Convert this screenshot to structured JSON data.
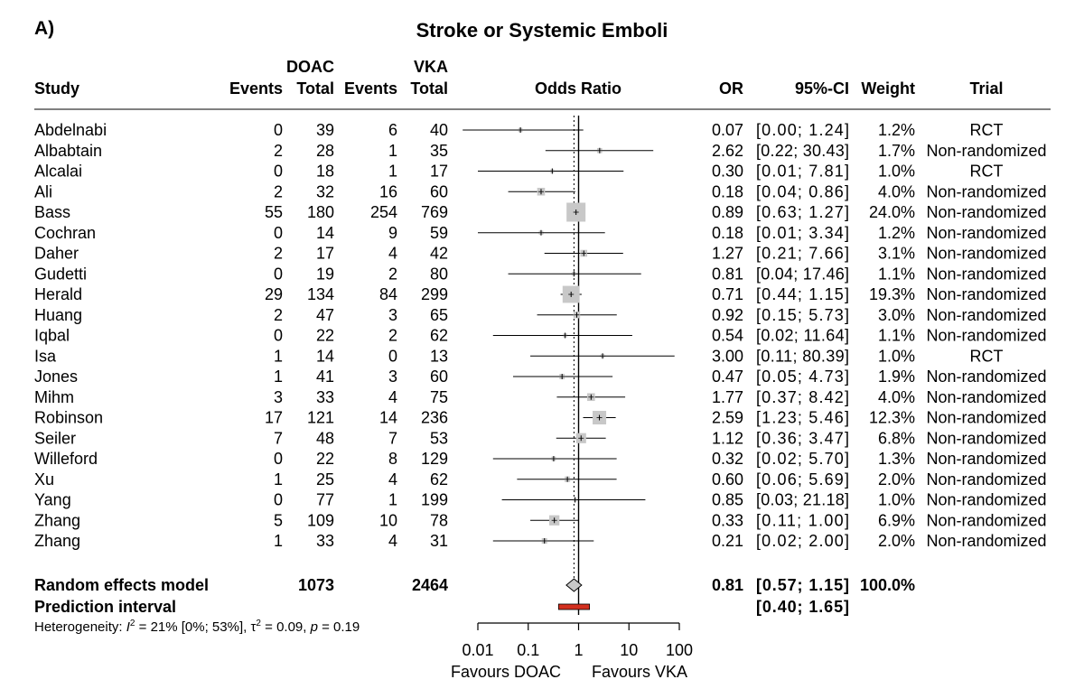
{
  "panel_label": "A)",
  "chart_data": {
    "type": "forest",
    "title": "Stroke or Systemic Emboli",
    "header": {
      "group1": "DOAC",
      "group2": "VKA",
      "study": "Study",
      "events": "Events",
      "total": "Total",
      "effect": "Odds Ratio",
      "or": "OR",
      "ci": "95%-CI",
      "weight": "Weight",
      "trial": "Trial"
    },
    "studies": [
      {
        "study": "Abdelnabi",
        "e1": "0",
        "n1": "39",
        "e2": "6",
        "n2": "40",
        "or": 0.07,
        "lo": 0.0,
        "hi": 1.24,
        "ci": "[0.00;  1.24]",
        "weight_pct": 1.2,
        "weight": "1.2%",
        "trial": "RCT"
      },
      {
        "study": "Albabtain",
        "e1": "2",
        "n1": "28",
        "e2": "1",
        "n2": "35",
        "or": 2.62,
        "lo": 0.22,
        "hi": 30.43,
        "ci": "[0.22; 30.43]",
        "weight_pct": 1.7,
        "weight": "1.7%",
        "trial": "Non-randomized"
      },
      {
        "study": "Alcalai",
        "e1": "0",
        "n1": "18",
        "e2": "1",
        "n2": "17",
        "or": 0.3,
        "lo": 0.01,
        "hi": 7.81,
        "ci": "[0.01;  7.81]",
        "weight_pct": 1.0,
        "weight": "1.0%",
        "trial": "RCT"
      },
      {
        "study": "Ali",
        "e1": "2",
        "n1": "32",
        "e2": "16",
        "n2": "60",
        "or": 0.18,
        "lo": 0.04,
        "hi": 0.86,
        "ci": "[0.04;  0.86]",
        "weight_pct": 4.0,
        "weight": "4.0%",
        "trial": "Non-randomized"
      },
      {
        "study": "Bass",
        "e1": "55",
        "n1": "180",
        "e2": "254",
        "n2": "769",
        "or": 0.89,
        "lo": 0.63,
        "hi": 1.27,
        "ci": "[0.63;  1.27]",
        "weight_pct": 24.0,
        "weight": "24.0%",
        "trial": "Non-randomized"
      },
      {
        "study": "Cochran",
        "e1": "0",
        "n1": "14",
        "e2": "9",
        "n2": "59",
        "or": 0.18,
        "lo": 0.01,
        "hi": 3.34,
        "ci": "[0.01;  3.34]",
        "weight_pct": 1.2,
        "weight": "1.2%",
        "trial": "Non-randomized"
      },
      {
        "study": "Daher",
        "e1": "2",
        "n1": "17",
        "e2": "4",
        "n2": "42",
        "or": 1.27,
        "lo": 0.21,
        "hi": 7.66,
        "ci": "[0.21;  7.66]",
        "weight_pct": 3.1,
        "weight": "3.1%",
        "trial": "Non-randomized"
      },
      {
        "study": "Gudetti",
        "e1": "0",
        "n1": "19",
        "e2": "2",
        "n2": "80",
        "or": 0.81,
        "lo": 0.04,
        "hi": 17.46,
        "ci": "[0.04; 17.46]",
        "weight_pct": 1.1,
        "weight": "1.1%",
        "trial": "Non-randomized"
      },
      {
        "study": "Herald",
        "e1": "29",
        "n1": "134",
        "e2": "84",
        "n2": "299",
        "or": 0.71,
        "lo": 0.44,
        "hi": 1.15,
        "ci": "[0.44;  1.15]",
        "weight_pct": 19.3,
        "weight": "19.3%",
        "trial": "Non-randomized"
      },
      {
        "study": "Huang",
        "e1": "2",
        "n1": "47",
        "e2": "3",
        "n2": "65",
        "or": 0.92,
        "lo": 0.15,
        "hi": 5.73,
        "ci": "[0.15;  5.73]",
        "weight_pct": 3.0,
        "weight": "3.0%",
        "trial": "Non-randomized"
      },
      {
        "study": "Iqbal",
        "e1": "0",
        "n1": "22",
        "e2": "2",
        "n2": "62",
        "or": 0.54,
        "lo": 0.02,
        "hi": 11.64,
        "ci": "[0.02; 11.64]",
        "weight_pct": 1.1,
        "weight": "1.1%",
        "trial": "Non-randomized"
      },
      {
        "study": "Isa",
        "e1": "1",
        "n1": "14",
        "e2": "0",
        "n2": "13",
        "or": 3.0,
        "lo": 0.11,
        "hi": 80.39,
        "ci": "[0.11; 80.39]",
        "weight_pct": 1.0,
        "weight": "1.0%",
        "trial": "RCT"
      },
      {
        "study": "Jones",
        "e1": "1",
        "n1": "41",
        "e2": "3",
        "n2": "60",
        "or": 0.47,
        "lo": 0.05,
        "hi": 4.73,
        "ci": "[0.05;  4.73]",
        "weight_pct": 1.9,
        "weight": "1.9%",
        "trial": "Non-randomized"
      },
      {
        "study": "Mihm",
        "e1": "3",
        "n1": "33",
        "e2": "4",
        "n2": "75",
        "or": 1.77,
        "lo": 0.37,
        "hi": 8.42,
        "ci": "[0.37;  8.42]",
        "weight_pct": 4.0,
        "weight": "4.0%",
        "trial": "Non-randomized"
      },
      {
        "study": "Robinson",
        "e1": "17",
        "n1": "121",
        "e2": "14",
        "n2": "236",
        "or": 2.59,
        "lo": 1.23,
        "hi": 5.46,
        "ci": "[1.23;  5.46]",
        "weight_pct": 12.3,
        "weight": "12.3%",
        "trial": "Non-randomized"
      },
      {
        "study": "Seiler",
        "e1": "7",
        "n1": "48",
        "e2": "7",
        "n2": "53",
        "or": 1.12,
        "lo": 0.36,
        "hi": 3.47,
        "ci": "[0.36;  3.47]",
        "weight_pct": 6.8,
        "weight": "6.8%",
        "trial": "Non-randomized"
      },
      {
        "study": "Willeford",
        "e1": "0",
        "n1": "22",
        "e2": "8",
        "n2": "129",
        "or": 0.32,
        "lo": 0.02,
        "hi": 5.7,
        "ci": "[0.02;  5.70]",
        "weight_pct": 1.3,
        "weight": "1.3%",
        "trial": "Non-randomized"
      },
      {
        "study": "Xu",
        "e1": "1",
        "n1": "25",
        "e2": "4",
        "n2": "62",
        "or": 0.6,
        "lo": 0.06,
        "hi": 5.69,
        "ci": "[0.06;  5.69]",
        "weight_pct": 2.0,
        "weight": "2.0%",
        "trial": "Non-randomized"
      },
      {
        "study": "Yang",
        "e1": "0",
        "n1": "77",
        "e2": "1",
        "n2": "199",
        "or": 0.85,
        "lo": 0.03,
        "hi": 21.18,
        "ci": "[0.03; 21.18]",
        "weight_pct": 1.0,
        "weight": "1.0%",
        "trial": "Non-randomized"
      },
      {
        "study": "Zhang",
        "e1": "5",
        "n1": "109",
        "e2": "10",
        "n2": "78",
        "or": 0.33,
        "lo": 0.11,
        "hi": 1.0,
        "ci": "[0.11;  1.00]",
        "weight_pct": 6.9,
        "weight": "6.9%",
        "trial": "Non-randomized"
      },
      {
        "study": "Zhang",
        "e1": "1",
        "n1": "33",
        "e2": "4",
        "n2": "31",
        "or": 0.21,
        "lo": 0.02,
        "hi": 2.0,
        "ci": "[0.02;  2.00]",
        "weight_pct": 2.0,
        "weight": "2.0%",
        "trial": "Non-randomized"
      }
    ],
    "pooled": {
      "label": "Random effects model",
      "n1": "1073",
      "n2": "2464",
      "or": 0.81,
      "lo": 0.57,
      "hi": 1.15,
      "or_text": "0.81",
      "ci": "[0.57;  1.15]",
      "weight": "100.0%"
    },
    "prediction": {
      "label": "Prediction interval",
      "lo": 0.4,
      "hi": 1.65,
      "ci": "[0.40;  1.65]"
    },
    "heterogeneity": {
      "prefix": "Heterogeneity: ",
      "i2_symbol": "I",
      "i2_sup": "2",
      "i2_value": " = 21% [0%; 53%], ",
      "tau_symbol": "τ",
      "tau_sup": "2",
      "tau_value": " = 0.09, ",
      "p_symbol": "p",
      "p_value": " = 0.19"
    },
    "axis": {
      "scale": "log",
      "ticks": [
        0.01,
        0.1,
        1,
        10,
        100
      ],
      "tick_labels": [
        "0.01",
        "0.1",
        "1",
        "10",
        "100"
      ],
      "xlim": [
        0.01,
        100
      ],
      "label_left": "Favours DOAC",
      "label_right": "Favours VKA"
    },
    "colors": {
      "square": "#c8c8c8",
      "diamond": "#c8c8c8",
      "prediction": "#d32f1e",
      "line": "#000000"
    }
  }
}
